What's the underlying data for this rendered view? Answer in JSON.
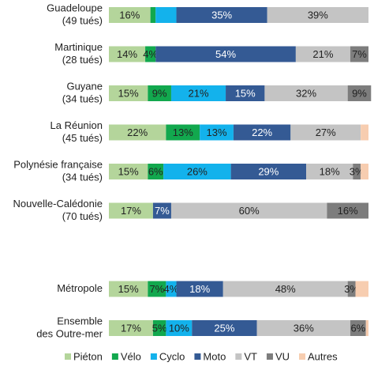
{
  "chart_data": {
    "type": "stacked-bar-horizontal",
    "categories": [
      [
        "Guadeloupe",
        "(49 tués)"
      ],
      [
        "Martinique",
        "(28 tués)"
      ],
      [
        "Guyane",
        "(34 tués)"
      ],
      [
        "La Réunion",
        "(45 tués)"
      ],
      [
        "Polynésie française",
        "(34 tués)"
      ],
      [
        "Nouvelle-Calédonie",
        "(70 tués)"
      ],
      null,
      [
        "Métropole"
      ],
      [
        "Ensemble",
        "des Outre-mer"
      ]
    ],
    "series": [
      {
        "name": "Piéton",
        "color": "#b4d59b",
        "values": [
          16,
          14,
          15,
          22,
          15,
          17,
          null,
          15,
          17
        ],
        "value_labels": [
          "16%",
          "14%",
          "15%",
          "22%",
          "15%",
          "17%",
          null,
          "15%",
          "17%"
        ]
      },
      {
        "name": "Vélo",
        "color": "#12a84e",
        "values": [
          2,
          4,
          9,
          13,
          6,
          0,
          null,
          7,
          5
        ],
        "value_labels": [
          null,
          "4%",
          "9%",
          "13%",
          "6%",
          null,
          null,
          "7%",
          "5%"
        ]
      },
      {
        "name": "Cyclo",
        "color": "#13b2ec",
        "values": [
          8,
          0,
          21,
          13,
          26,
          0,
          null,
          4,
          10
        ],
        "value_labels": [
          null,
          null,
          "21%",
          "13%",
          "26%",
          null,
          null,
          "4%",
          "10%"
        ]
      },
      {
        "name": "Moto",
        "color": "#345a94",
        "values": [
          35,
          54,
          15,
          22,
          29,
          7,
          null,
          18,
          25
        ],
        "value_labels": [
          "35%",
          "54%",
          "15%",
          "22%",
          "29%",
          "7%",
          null,
          "18%",
          "25%"
        ]
      },
      {
        "name": "VT",
        "color": "#c4c4c4",
        "values": [
          39,
          21,
          32,
          27,
          18,
          60,
          null,
          48,
          36
        ],
        "value_labels": [
          "39%",
          "21%",
          "32%",
          "27%",
          "18%",
          "60%",
          null,
          "48%",
          "36%"
        ]
      },
      {
        "name": "VU",
        "color": "#7d7d7d",
        "values": [
          0,
          7,
          9,
          0,
          3,
          16,
          null,
          3,
          6
        ],
        "value_labels": [
          null,
          "7%",
          "9%",
          null,
          "3%",
          "16%",
          null,
          "3%",
          "6%"
        ]
      },
      {
        "name": "Autres",
        "color": "#f7cdb0",
        "values": [
          0,
          0,
          0,
          3,
          3,
          0,
          null,
          5,
          1
        ],
        "value_labels": [
          null,
          null,
          null,
          null,
          null,
          null,
          null,
          null,
          null
        ]
      }
    ],
    "xlim": [
      0,
      100
    ]
  }
}
